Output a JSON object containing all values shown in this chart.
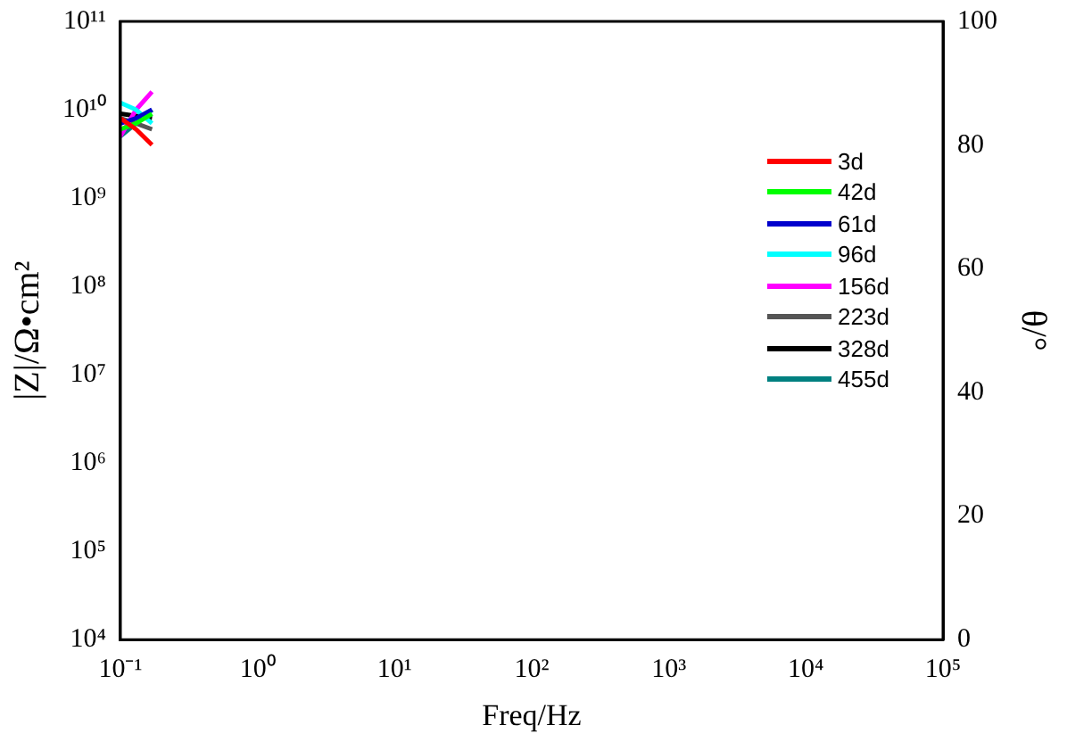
{
  "chart_data": {
    "type": "line",
    "xlabel": "Freq/Hz",
    "ylabel": "|Z|/Ω•cm²",
    "y2label": "θ/°",
    "log": "xy",
    "grid": false,
    "legend": "right",
    "marker": "none",
    "line_style": "solid",
    "xlim": [
      0.1,
      100000
    ],
    "xticks": [
      {
        "value": 0.1,
        "label": "10⁻¹"
      },
      {
        "value": 1,
        "label": "10⁰"
      },
      {
        "value": 10,
        "label": "10¹"
      },
      {
        "value": 100,
        "label": "10²"
      },
      {
        "value": 1000,
        "label": "10³"
      },
      {
        "value": 10000,
        "label": "10⁴"
      },
      {
        "value": 100000,
        "label": "10⁵"
      }
    ],
    "ylim": [
      10000,
      100000000000
    ],
    "yticks": [
      {
        "value": 10000,
        "label": "10⁴"
      },
      {
        "value": 100000,
        "label": "10⁵"
      },
      {
        "value": 1000000,
        "label": "10⁶"
      },
      {
        "value": 10000000,
        "label": "10⁷"
      },
      {
        "value": 100000000,
        "label": "10⁸"
      },
      {
        "value": 1000000000,
        "label": "10⁹"
      },
      {
        "value": 10000000000,
        "label": "10¹⁰"
      },
      {
        "value": 100000000000,
        "label": "10¹¹"
      }
    ],
    "y2lim": [
      0,
      100
    ],
    "y2ticks": [
      0,
      20,
      40,
      60,
      80,
      100
    ],
    "x": [
      0.1,
      0.13,
      0.17
    ],
    "series": [
      {
        "name": "3d",
        "color": "#ff0000",
        "values": [
          8000000000.0,
          6000000000.0,
          4000000000.0
        ]
      },
      {
        "name": "42d",
        "color": "#00ff00",
        "values": [
          6000000000.0,
          7000000000.0,
          9000000000.0
        ]
      },
      {
        "name": "61d",
        "color": "#0000cc",
        "values": [
          7000000000.0,
          8000000000.0,
          10000000000.0
        ]
      },
      {
        "name": "96d",
        "color": "#00ffff",
        "values": [
          12000000000.0,
          10000000000.0,
          7000000000.0
        ]
      },
      {
        "name": "156d",
        "color": "#ff00ff",
        "values": [
          5000000000.0,
          10000000000.0,
          16000000000.0
        ]
      },
      {
        "name": "223d",
        "color": "#555555",
        "values": [
          8000000000.0,
          7000000000.0,
          6000000000.0
        ]
      },
      {
        "name": "328d",
        "color": "#000000",
        "values": [
          9000000000.0,
          8500000000.0,
          8000000000.0
        ]
      },
      {
        "name": "455d",
        "color": "#008080",
        "values": [
          5000000000.0,
          7000000000.0,
          10000000000.0
        ]
      }
    ]
  }
}
